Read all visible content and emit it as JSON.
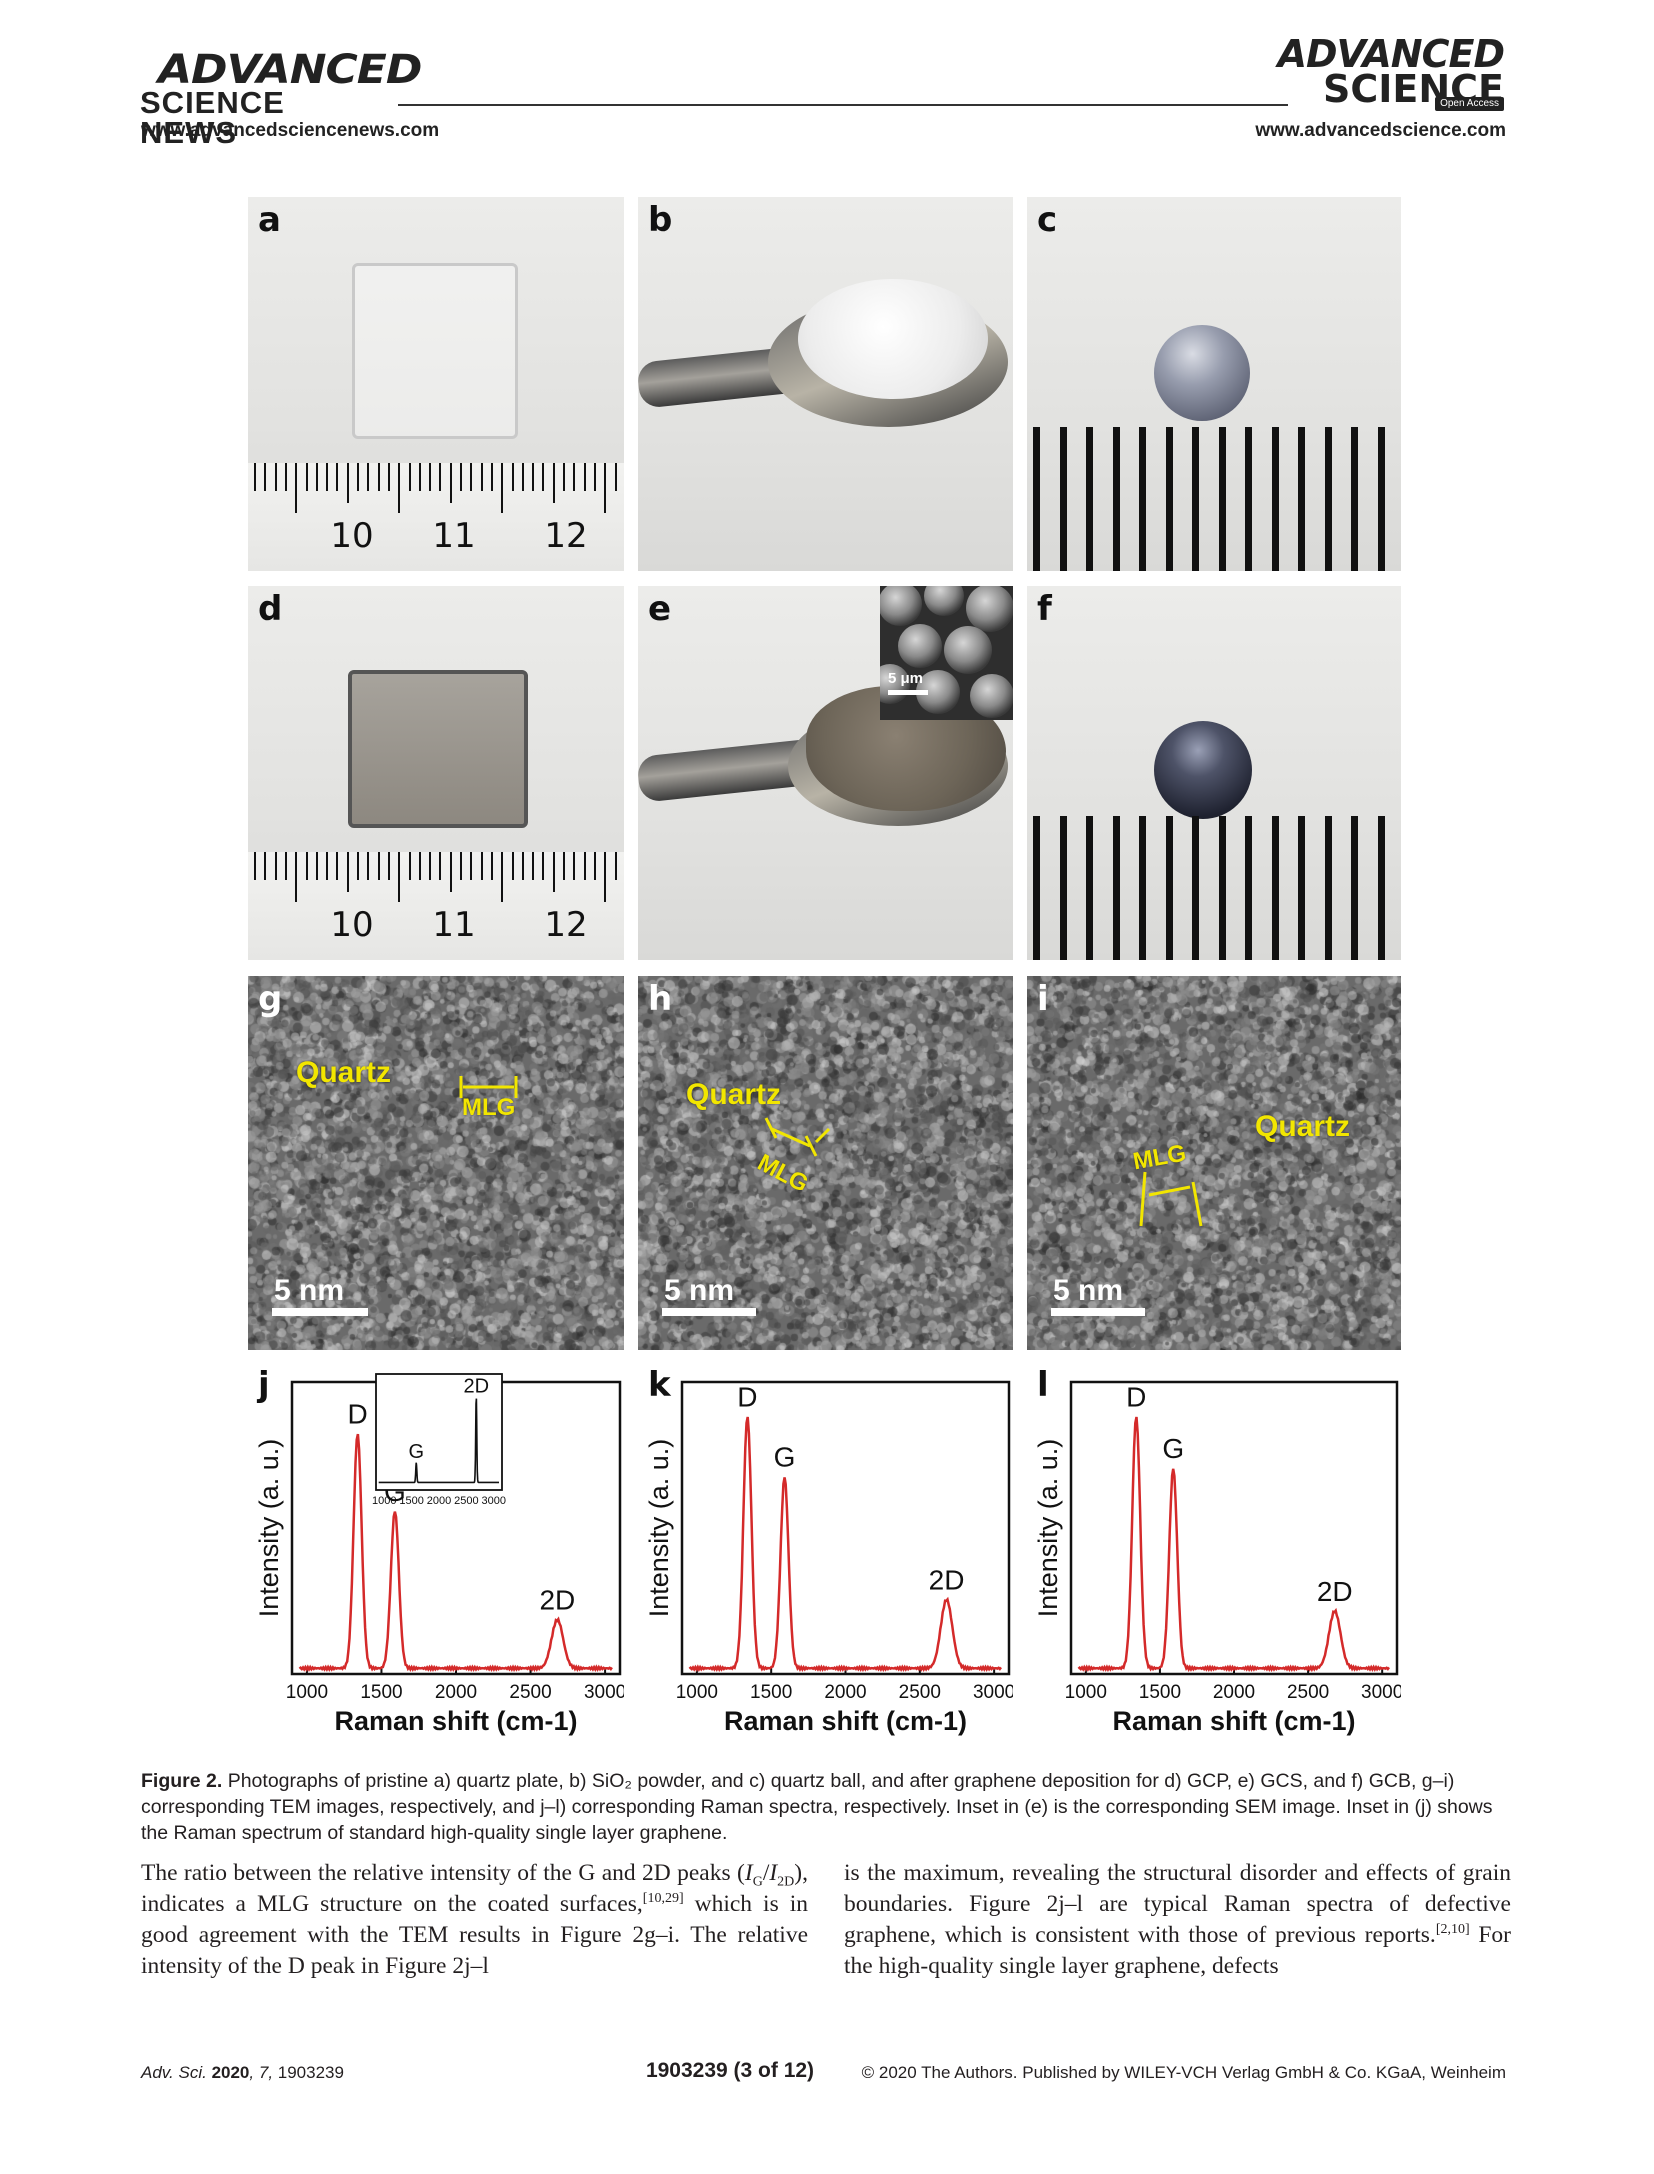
{
  "header": {
    "left_logo_line1": "ADVANCED",
    "left_logo_line2": "SCIENCE NEWS",
    "left_url": "www.advancedsciencenews.com",
    "right_logo_line1": "ADVANCED",
    "right_logo_line2": "SCIENCE",
    "right_badge": "Open Access",
    "right_url": "www.advancedscience.com"
  },
  "figure": {
    "panels": {
      "a": "a",
      "b": "b",
      "c": "c",
      "d": "d",
      "e": "e",
      "f": "f",
      "g": "g",
      "h": "h",
      "i": "i",
      "j": "j",
      "k": "k",
      "l": "l"
    },
    "ruler_numbers": [
      "10",
      "11",
      "12"
    ],
    "sem_scale": "5 μm",
    "tem": {
      "quartz": "Quartz",
      "mlg": "MLG",
      "scale": "5 nm"
    },
    "chart_data": [
      {
        "type": "line",
        "panel": "j",
        "xlabel": "Raman shift (cm-1)",
        "ylabel": "Intensity (a. u.)",
        "xlim": [
          900,
          3100
        ],
        "xticks": [
          1000,
          1500,
          2000,
          2500,
          3000
        ],
        "peaks": [
          {
            "name": "D",
            "x": 1340,
            "y": 0.82
          },
          {
            "name": "G",
            "x": 1590,
            "y": 0.55
          },
          {
            "name": "2D",
            "x": 2680,
            "y": 0.17
          }
        ],
        "inset": {
          "xticks": [
            1000,
            1500,
            2000,
            2500,
            3000
          ],
          "peaks": [
            {
              "name": "G",
              "x": 1585,
              "y": 0.22
            },
            {
              "name": "2D",
              "x": 2680,
              "y": 0.95
            }
          ]
        }
      },
      {
        "type": "line",
        "panel": "k",
        "xlabel": "Raman shift (cm-1)",
        "ylabel": "Intensity (a. u.)",
        "xlim": [
          900,
          3100
        ],
        "xticks": [
          1000,
          1500,
          2000,
          2500,
          3000
        ],
        "peaks": [
          {
            "name": "D",
            "x": 1340,
            "y": 0.88
          },
          {
            "name": "G",
            "x": 1590,
            "y": 0.67
          },
          {
            "name": "2D",
            "x": 2680,
            "y": 0.24
          }
        ]
      },
      {
        "type": "line",
        "panel": "l",
        "xlabel": "Raman shift (cm-1)",
        "ylabel": "Intensity (a. u.)",
        "xlim": [
          900,
          3100
        ],
        "xticks": [
          1000,
          1500,
          2000,
          2500,
          3000
        ],
        "peaks": [
          {
            "name": "D",
            "x": 1340,
            "y": 0.88
          },
          {
            "name": "G",
            "x": 1590,
            "y": 0.7
          },
          {
            "name": "2D",
            "x": 2680,
            "y": 0.2
          }
        ]
      }
    ]
  },
  "caption": {
    "label": "Figure 2.",
    "text": "Photographs of pristine a) quartz plate, b) SiO₂ powder, and c) quartz ball, and after graphene deposition for d) GCP, e) GCS, and f) GCB, g–i) corresponding TEM images, respectively, and j–l) corresponding Raman spectra, respectively. Inset in (e) is the corresponding SEM image. Inset in (j) shows the Raman spectrum of standard high-quality single layer graphene."
  },
  "body": {
    "left_p1": "The ratio between the relative intensity of the G and 2D peaks (",
    "left_ig": "I",
    "left_ig_sub": "G",
    "left_slash": "/",
    "left_i2d": "I",
    "left_i2d_sub": "2D",
    "left_p2": "), indicates a MLG structure on the coated surfaces,",
    "left_ref1": "[10,29]",
    "left_p3": " which is in good agreement with the TEM results in Figure 2g–i. The relative intensity of the D peak in Figure 2j–l",
    "right_p1": "is the maximum, revealing the structural disorder and effects of grain boundaries. Figure 2j–l are typical Raman spectra of defective graphene, which is consistent with those of previous reports.",
    "right_ref": "[2,10]",
    "right_p2": " For the high-quality single layer graphene, defects"
  },
  "footer": {
    "journal": "Adv. Sci.",
    "year": "2020",
    "volume": "7",
    "article": "1903239",
    "page": "1903239  (3 of 12)",
    "copyright": "© 2020 The Authors. Published by WILEY-VCH Verlag GmbH & Co. KGaA, Weinheim"
  },
  "colors": {
    "spectrum": "#d42a2a",
    "tem_label": "#f2e600"
  }
}
